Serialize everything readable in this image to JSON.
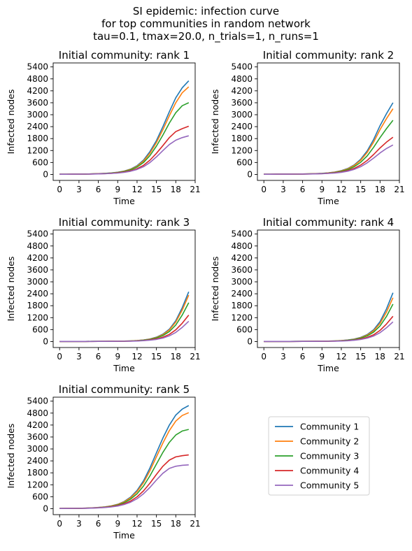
{
  "figure": {
    "title_lines": [
      "SI epidemic: infection curve",
      "for top communities in random network",
      "tau=0.1, tmax=20.0, n_trials=1, n_runs=1"
    ]
  },
  "legend": {
    "placement": "lower-right empty panel",
    "entries": [
      "Community 1",
      "Community 2",
      "Community 3",
      "Community 4",
      "Community 5"
    ]
  },
  "series_colors": [
    "#1f77b4",
    "#ff7f0e",
    "#2ca02c",
    "#d62728",
    "#9467bd"
  ],
  "chart_data": [
    {
      "type": "line",
      "title": "Initial community: rank 1",
      "xlabel": "Time",
      "ylabel": "Infected nodes",
      "xlim": [
        -1,
        21
      ],
      "ylim": [
        -300,
        5600
      ],
      "xticks": [
        0,
        3,
        6,
        9,
        12,
        15,
        18,
        21
      ],
      "yticks": [
        0,
        600,
        1200,
        1800,
        2400,
        3000,
        3600,
        4200,
        4800,
        5400
      ],
      "grid": false,
      "x": [
        0,
        1,
        2,
        3,
        4,
        5,
        6,
        7,
        8,
        9,
        10,
        11,
        12,
        13,
        14,
        15,
        16,
        17,
        18,
        19,
        20
      ],
      "series": [
        {
          "name": "Community 1",
          "values": [
            10,
            10,
            12,
            15,
            20,
            28,
            40,
            55,
            75,
            110,
            170,
            270,
            440,
            720,
            1150,
            1700,
            2400,
            3150,
            3850,
            4350,
            4700
          ]
        },
        {
          "name": "Community 2",
          "values": [
            10,
            10,
            12,
            15,
            20,
            27,
            38,
            52,
            72,
            105,
            160,
            255,
            410,
            670,
            1070,
            1600,
            2250,
            2950,
            3600,
            4100,
            4400
          ]
        },
        {
          "name": "Community 3",
          "values": [
            10,
            10,
            12,
            14,
            19,
            25,
            35,
            48,
            66,
            95,
            145,
            230,
            370,
            600,
            950,
            1420,
            1980,
            2580,
            3100,
            3450,
            3600
          ]
        },
        {
          "name": "Community 4",
          "values": [
            10,
            10,
            11,
            13,
            17,
            22,
            30,
            41,
            56,
            80,
            120,
            185,
            290,
            460,
            720,
            1060,
            1450,
            1850,
            2150,
            2300,
            2420
          ]
        },
        {
          "name": "Community 5",
          "values": [
            10,
            10,
            11,
            13,
            16,
            20,
            27,
            37,
            50,
            70,
            105,
            160,
            250,
            390,
            600,
            880,
            1200,
            1500,
            1720,
            1850,
            1940
          ]
        }
      ]
    },
    {
      "type": "line",
      "title": "Initial community: rank 2",
      "xlabel": "Time",
      "ylabel": "Infected nodes",
      "xlim": [
        -1,
        21
      ],
      "ylim": [
        -300,
        5600
      ],
      "xticks": [
        0,
        3,
        6,
        9,
        12,
        15,
        18,
        21
      ],
      "yticks": [
        0,
        600,
        1200,
        1800,
        2400,
        3000,
        3600,
        4200,
        4800,
        5400
      ],
      "grid": false,
      "x": [
        0,
        1,
        2,
        3,
        4,
        5,
        6,
        7,
        8,
        9,
        10,
        11,
        12,
        13,
        14,
        15,
        16,
        17,
        18,
        19,
        20
      ],
      "series": [
        {
          "name": "Community 1",
          "values": [
            10,
            10,
            11,
            13,
            15,
            18,
            23,
            30,
            40,
            55,
            80,
            120,
            190,
            300,
            480,
            760,
            1180,
            1750,
            2450,
            3050,
            3600
          ]
        },
        {
          "name": "Community 2",
          "values": [
            10,
            10,
            11,
            13,
            15,
            18,
            22,
            29,
            38,
            52,
            75,
            113,
            178,
            280,
            450,
            710,
            1100,
            1620,
            2250,
            2800,
            3300
          ]
        },
        {
          "name": "Community 3",
          "values": [
            10,
            10,
            11,
            12,
            14,
            17,
            21,
            27,
            35,
            48,
            68,
            100,
            155,
            245,
            390,
            610,
            930,
            1360,
            1850,
            2300,
            2720
          ]
        },
        {
          "name": "Community 4",
          "values": [
            10,
            10,
            11,
            12,
            14,
            16,
            19,
            24,
            31,
            41,
            57,
            82,
            125,
            195,
            305,
            470,
            700,
            1000,
            1330,
            1620,
            1870
          ]
        },
        {
          "name": "Community 5",
          "values": [
            10,
            10,
            11,
            12,
            13,
            15,
            18,
            22,
            28,
            37,
            50,
            72,
            108,
            165,
            255,
            390,
            580,
            820,
            1080,
            1300,
            1480
          ]
        }
      ]
    },
    {
      "type": "line",
      "title": "Initial community: rank 3",
      "xlabel": "Time",
      "ylabel": "Infected nodes",
      "xlim": [
        -1,
        21
      ],
      "ylim": [
        -300,
        5600
      ],
      "xticks": [
        0,
        3,
        6,
        9,
        12,
        15,
        18,
        21
      ],
      "yticks": [
        0,
        600,
        1200,
        1800,
        2400,
        3000,
        3600,
        4200,
        4800,
        5400
      ],
      "grid": false,
      "x": [
        0,
        1,
        2,
        3,
        4,
        5,
        6,
        7,
        8,
        9,
        10,
        11,
        12,
        13,
        14,
        15,
        16,
        17,
        18,
        19,
        20
      ],
      "series": [
        {
          "name": "Community 1",
          "values": [
            5,
            5,
            6,
            6,
            7,
            8,
            9,
            11,
            13,
            17,
            23,
            33,
            50,
            80,
            130,
            220,
            370,
            620,
            1050,
            1700,
            2500
          ]
        },
        {
          "name": "Community 2",
          "values": [
            5,
            5,
            6,
            6,
            7,
            8,
            9,
            11,
            13,
            16,
            22,
            31,
            47,
            75,
            122,
            205,
            345,
            580,
            980,
            1580,
            2330
          ]
        },
        {
          "name": "Community 3",
          "values": [
            5,
            5,
            6,
            6,
            7,
            8,
            9,
            10,
            12,
            15,
            20,
            28,
            42,
            67,
            108,
            180,
            300,
            500,
            830,
            1330,
            1950
          ]
        },
        {
          "name": "Community 4",
          "values": [
            5,
            5,
            5,
            6,
            6,
            7,
            8,
            9,
            11,
            13,
            17,
            23,
            33,
            52,
            82,
            135,
            220,
            360,
            590,
            920,
            1330
          ]
        },
        {
          "name": "Community 5",
          "values": [
            5,
            5,
            5,
            6,
            6,
            7,
            8,
            9,
            10,
            12,
            15,
            20,
            28,
            43,
            67,
            108,
            175,
            285,
            460,
            710,
            1020
          ]
        }
      ]
    },
    {
      "type": "line",
      "title": "Initial community: rank 4",
      "xlabel": "Time",
      "ylabel": "Infected nodes",
      "xlim": [
        -1,
        21
      ],
      "ylim": [
        -300,
        5600
      ],
      "xticks": [
        0,
        3,
        6,
        9,
        12,
        15,
        18,
        21
      ],
      "yticks": [
        0,
        600,
        1200,
        1800,
        2400,
        3000,
        3600,
        4200,
        4800,
        5400
      ],
      "grid": false,
      "x": [
        0,
        1,
        2,
        3,
        4,
        5,
        6,
        7,
        8,
        9,
        10,
        11,
        12,
        13,
        14,
        15,
        16,
        17,
        18,
        19,
        20
      ],
      "series": [
        {
          "name": "Community 1",
          "values": [
            5,
            5,
            6,
            6,
            7,
            8,
            9,
            11,
            13,
            17,
            23,
            33,
            50,
            78,
            125,
            210,
            350,
            590,
            1000,
            1640,
            2450
          ]
        },
        {
          "name": "Community 2",
          "values": [
            5,
            5,
            6,
            6,
            7,
            8,
            9,
            11,
            13,
            16,
            22,
            31,
            46,
            72,
            115,
            193,
            322,
            540,
            910,
            1480,
            2200
          ]
        },
        {
          "name": "Community 3",
          "values": [
            5,
            5,
            6,
            6,
            7,
            8,
            9,
            10,
            12,
            15,
            20,
            28,
            41,
            64,
            102,
            170,
            283,
            470,
            780,
            1260,
            1880
          ]
        },
        {
          "name": "Community 4",
          "values": [
            5,
            5,
            5,
            6,
            6,
            7,
            8,
            9,
            11,
            13,
            16,
            22,
            32,
            49,
            77,
            127,
            208,
            340,
            560,
            880,
            1270
          ]
        },
        {
          "name": "Community 5",
          "values": [
            5,
            5,
            5,
            6,
            6,
            7,
            8,
            9,
            10,
            12,
            15,
            20,
            28,
            42,
            65,
            105,
            170,
            275,
            445,
            690,
            990
          ]
        }
      ]
    },
    {
      "type": "line",
      "title": "Initial community: rank 5",
      "xlabel": "Time",
      "ylabel": "Infected nodes",
      "xlim": [
        -1,
        21
      ],
      "ylim": [
        -300,
        5600
      ],
      "xticks": [
        0,
        3,
        6,
        9,
        12,
        15,
        18,
        21
      ],
      "yticks": [
        0,
        600,
        1200,
        1800,
        2400,
        3000,
        3600,
        4200,
        4800,
        5400
      ],
      "grid": false,
      "x": [
        0,
        1,
        2,
        3,
        4,
        5,
        6,
        7,
        8,
        9,
        10,
        11,
        12,
        13,
        14,
        15,
        16,
        17,
        18,
        19,
        20
      ],
      "series": [
        {
          "name": "Community 1",
          "values": [
            10,
            11,
            14,
            19,
            27,
            40,
            60,
            90,
            140,
            220,
            360,
            580,
            920,
            1400,
            2050,
            2800,
            3550,
            4200,
            4700,
            5000,
            5180
          ]
        },
        {
          "name": "Community 2",
          "values": [
            10,
            11,
            14,
            19,
            26,
            38,
            57,
            85,
            132,
            208,
            340,
            545,
            860,
            1310,
            1910,
            2600,
            3300,
            3920,
            4400,
            4680,
            4820
          ]
        },
        {
          "name": "Community 3",
          "values": [
            10,
            11,
            13,
            18,
            24,
            35,
            52,
            77,
            118,
            185,
            300,
            480,
            750,
            1140,
            1650,
            2240,
            2830,
            3330,
            3700,
            3900,
            3980
          ]
        },
        {
          "name": "Community 4",
          "values": [
            10,
            11,
            13,
            16,
            22,
            31,
            45,
            66,
            100,
            155,
            245,
            385,
            595,
            895,
            1280,
            1720,
            2130,
            2440,
            2600,
            2660,
            2700
          ]
        },
        {
          "name": "Community 5",
          "values": [
            10,
            10,
            12,
            15,
            20,
            28,
            40,
            58,
            87,
            133,
            208,
            325,
            500,
            750,
            1070,
            1440,
            1780,
            2020,
            2130,
            2180,
            2200
          ]
        }
      ]
    }
  ]
}
